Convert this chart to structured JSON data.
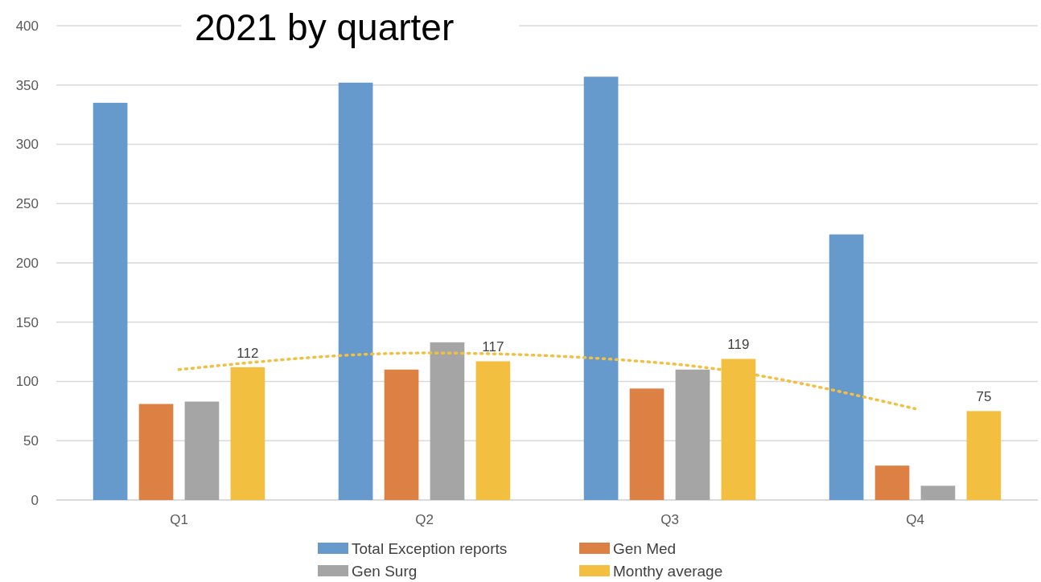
{
  "chart_data": {
    "type": "bar",
    "title": "2021 by quarter",
    "categories": [
      "Q1",
      "Q2",
      "Q3",
      "Q4"
    ],
    "series": [
      {
        "name": "Total Exception reports",
        "color": "#6699cc",
        "values": [
          335,
          352,
          357,
          224
        ]
      },
      {
        "name": "Gen Med",
        "color": "#dd8044",
        "values": [
          81,
          110,
          94,
          29
        ]
      },
      {
        "name": "Gen Surg",
        "color": "#a5a5a5",
        "values": [
          83,
          133,
          110,
          12
        ]
      },
      {
        "name": "Monthy average",
        "color": "#f3bf40",
        "values": [
          112,
          117,
          119,
          75
        ],
        "value_labels": [
          "112",
          "117",
          "119",
          "75"
        ]
      },
      {
        "type": "line",
        "color": "#f3bf40",
        "line_style": "dotted",
        "values": [
          110,
          124,
          115,
          77
        ]
      }
    ],
    "ylim": [
      0,
      400
    ],
    "yticks": [
      0,
      50,
      100,
      150,
      200,
      250,
      300,
      350,
      400
    ],
    "grid": "y",
    "legend": "bottom"
  }
}
